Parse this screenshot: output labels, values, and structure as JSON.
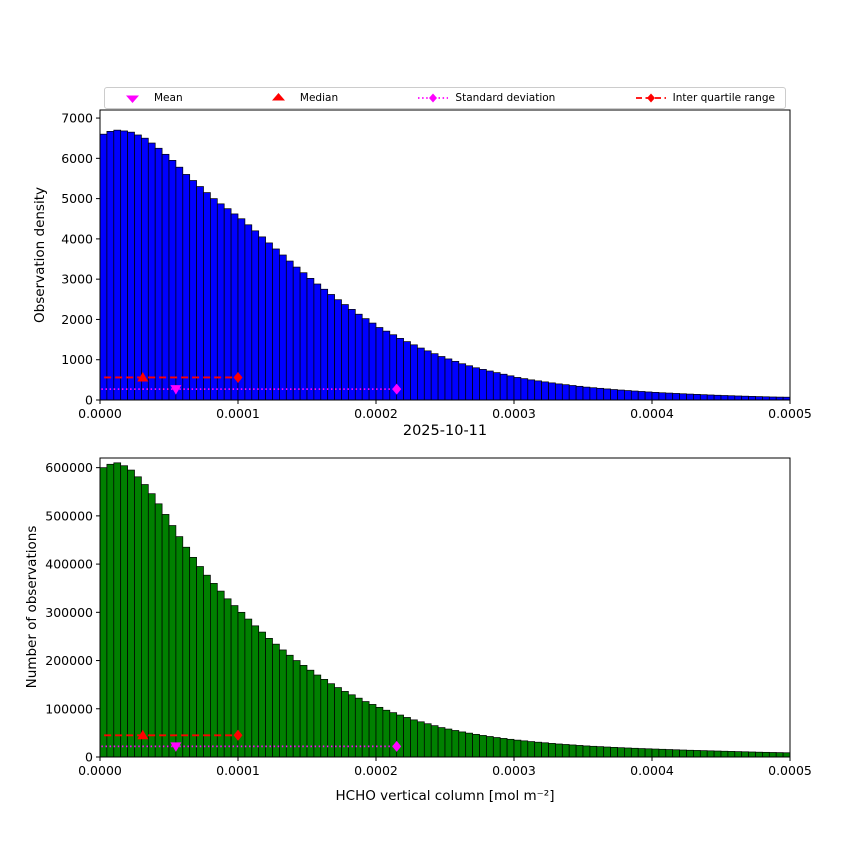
{
  "figure": {
    "background": "#ffffff",
    "date_title": "2025-10-11"
  },
  "legend": {
    "items": [
      {
        "label": "Mean",
        "marker": "triangle-down",
        "color": "#ff00ff",
        "line": "none"
      },
      {
        "label": "Median",
        "marker": "triangle-up",
        "color": "#ff0000",
        "line": "none"
      },
      {
        "label": "Standard deviation",
        "marker": "diamond",
        "color": "#ff00ff",
        "line": "dotted"
      },
      {
        "label": "Inter quartile range",
        "marker": "diamond",
        "color": "#ff0000",
        "line": "dashed"
      }
    ]
  },
  "chart_data": [
    {
      "type": "bar",
      "ylabel": "Observation density",
      "xlabel": "2025-10-11",
      "bar_color": "#0000ff",
      "edge_color": "#000000",
      "xlim": [
        0,
        0.0005
      ],
      "ylim": [
        0,
        7200
      ],
      "x_start": 0,
      "bin_width": 5e-06,
      "xticks": [
        0,
        0.0001,
        0.0002,
        0.0003,
        0.0004,
        0.0005
      ],
      "xtick_labels": [
        "0.0000",
        "0.0001",
        "0.0002",
        "0.0003",
        "0.0004",
        "0.0005"
      ],
      "yticks": [
        0,
        1000,
        2000,
        3000,
        4000,
        5000,
        6000,
        7000
      ],
      "values": [
        6600,
        6670,
        6700,
        6680,
        6650,
        6580,
        6500,
        6380,
        6250,
        6100,
        5950,
        5780,
        5600,
        5450,
        5300,
        5150,
        5000,
        4870,
        4750,
        4620,
        4500,
        4350,
        4200,
        4050,
        3900,
        3750,
        3600,
        3450,
        3300,
        3160,
        3020,
        2880,
        2750,
        2620,
        2490,
        2370,
        2250,
        2130,
        2020,
        1910,
        1800,
        1710,
        1620,
        1530,
        1450,
        1370,
        1290,
        1220,
        1150,
        1080,
        1020,
        960,
        900,
        850,
        800,
        760,
        720,
        680,
        640,
        600,
        560,
        530,
        500,
        475,
        450,
        425,
        400,
        380,
        360,
        340,
        320,
        305,
        290,
        275,
        260,
        247,
        235,
        223,
        212,
        200,
        190,
        180,
        172,
        163,
        155,
        147,
        140,
        132,
        125,
        118,
        112,
        106,
        100,
        95,
        90,
        85,
        80,
        75,
        72,
        70
      ],
      "markers": {
        "mean": {
          "x": 5.5e-05,
          "y": 270
        },
        "median": {
          "x": 3.1e-05,
          "y": 560
        },
        "std": {
          "x_start": 1e-06,
          "x_end": 0.000215,
          "y": 270
        },
        "iqr": {
          "x_start": 3e-06,
          "x_end": 0.0001,
          "y": 560
        }
      }
    },
    {
      "type": "bar",
      "ylabel": "Number of observations",
      "xlabel": "HCHO vertical column [mol m⁻²]",
      "bar_color": "#008000",
      "edge_color": "#000000",
      "xlim": [
        0,
        0.0005
      ],
      "ylim": [
        0,
        620000
      ],
      "x_start": 0,
      "bin_width": 5e-06,
      "xticks": [
        0,
        0.0001,
        0.0002,
        0.0003,
        0.0004,
        0.0005
      ],
      "xtick_labels": [
        "0.0000",
        "0.0001",
        "0.0002",
        "0.0003",
        "0.0004",
        "0.0005"
      ],
      "yticks": [
        0,
        100000,
        200000,
        300000,
        400000,
        500000,
        600000
      ],
      "values": [
        600000,
        607000,
        610000,
        604000,
        595000,
        581000,
        565000,
        546000,
        525000,
        503000,
        480000,
        457000,
        435000,
        414000,
        395000,
        377000,
        360000,
        344000,
        328000,
        314000,
        300000,
        286000,
        272000,
        259000,
        246000,
        234000,
        222000,
        211000,
        200000,
        190000,
        180000,
        170000,
        161000,
        152000,
        144000,
        136000,
        129000,
        122000,
        115000,
        109000,
        103000,
        97000,
        92000,
        87000,
        82000,
        77000,
        73000,
        69000,
        65000,
        61000,
        58000,
        55000,
        52000,
        49500,
        47000,
        44700,
        42500,
        40400,
        38500,
        36700,
        35000,
        33500,
        32000,
        30700,
        29500,
        28200,
        27000,
        26000,
        25000,
        24000,
        23000,
        22200,
        21500,
        20700,
        20000,
        19300,
        18700,
        18100,
        17500,
        17000,
        16500,
        16000,
        15500,
        15000,
        14500,
        14000,
        13600,
        13200,
        12800,
        12400,
        12000,
        11600,
        11200,
        10800,
        10400,
        10000,
        9700,
        9400,
        9100,
        8800
      ],
      "markers": {
        "mean": {
          "x": 5.5e-05,
          "y": 22000
        },
        "median": {
          "x": 3.1e-05,
          "y": 45000
        },
        "std": {
          "x_start": 1e-06,
          "x_end": 0.000215,
          "y": 22000
        },
        "iqr": {
          "x_start": 3e-06,
          "x_end": 0.0001,
          "y": 45000
        }
      }
    }
  ]
}
